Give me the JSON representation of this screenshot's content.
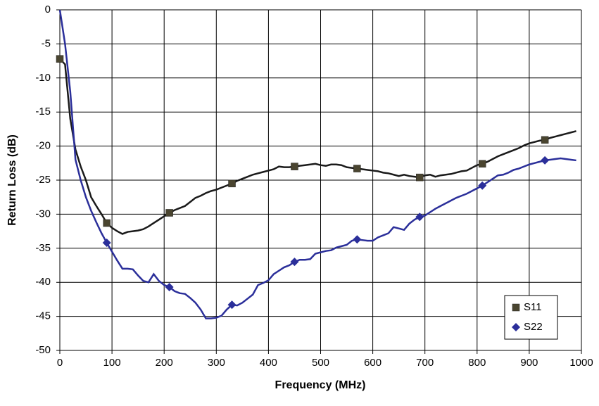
{
  "chart_data": {
    "type": "line",
    "x_label": "Frequency (MHz)",
    "y_label": "Return Loss (dB)",
    "x": [
      0,
      10,
      20,
      30,
      40,
      50,
      60,
      70,
      80,
      90,
      100,
      110,
      120,
      130,
      140,
      150,
      160,
      170,
      180,
      190,
      200,
      210,
      220,
      230,
      240,
      250,
      260,
      270,
      280,
      290,
      300,
      310,
      320,
      330,
      340,
      350,
      360,
      370,
      380,
      390,
      400,
      410,
      420,
      430,
      440,
      450,
      460,
      470,
      480,
      490,
      500,
      510,
      520,
      530,
      540,
      550,
      560,
      570,
      580,
      590,
      600,
      610,
      620,
      630,
      640,
      650,
      660,
      670,
      680,
      690,
      700,
      710,
      720,
      730,
      740,
      750,
      760,
      770,
      780,
      790,
      800,
      810,
      820,
      830,
      840,
      850,
      860,
      870,
      880,
      890,
      900,
      910,
      920,
      930,
      940,
      950,
      960,
      970,
      980,
      990
    ],
    "series": [
      {
        "name": "S11",
        "color": "#1a1a1a",
        "marker_color": "#4a4530",
        "marker": "square",
        "values": [
          -7.2,
          -8,
          -16,
          -20.5,
          -23,
          -25,
          -27.5,
          -28.8,
          -30,
          -31.3,
          -32,
          -32.5,
          -32.9,
          -32.6,
          -32.5,
          -32.4,
          -32.2,
          -31.8,
          -31.3,
          -30.8,
          -30.3,
          -29.8,
          -29.4,
          -29.1,
          -28.8,
          -28.2,
          -27.6,
          -27.3,
          -26.9,
          -26.6,
          -26.4,
          -26.1,
          -25.8,
          -25.5,
          -25.1,
          -24.8,
          -24.5,
          -24.2,
          -24,
          -23.8,
          -23.6,
          -23.4,
          -23,
          -23.1,
          -23.1,
          -23,
          -22.9,
          -22.8,
          -22.7,
          -22.6,
          -22.8,
          -22.9,
          -22.7,
          -22.7,
          -22.8,
          -23.1,
          -23.2,
          -23.3,
          -23.4,
          -23.5,
          -23.6,
          -23.7,
          -23.9,
          -24,
          -24.2,
          -24.4,
          -24.2,
          -24.4,
          -24.5,
          -24.6,
          -24.3,
          -24.2,
          -24.5,
          -24.3,
          -24.2,
          -24.1,
          -23.9,
          -23.7,
          -23.6,
          -23.2,
          -22.8,
          -22.6,
          -22.3,
          -21.9,
          -21.5,
          -21.2,
          -20.9,
          -20.6,
          -20.3,
          -19.9,
          -19.6,
          -19.4,
          -19.2,
          -19.1,
          -18.8,
          -18.6,
          -18.4,
          -18.2,
          -18,
          -17.8
        ]
      },
      {
        "name": "S22",
        "color": "#2b2f9a",
        "marker_color": "#2b2f9a",
        "marker": "diamond",
        "values": [
          0,
          -5,
          -12,
          -22,
          -25,
          -27.5,
          -29.5,
          -31.2,
          -32.8,
          -34.2,
          -35.5,
          -36.8,
          -38,
          -38,
          -38.1,
          -39,
          -39.8,
          -40,
          -38.8,
          -39.8,
          -40.4,
          -40.7,
          -41.3,
          -41.6,
          -41.7,
          -42.3,
          -43,
          -44,
          -45.3,
          -45.3,
          -45.2,
          -44.9,
          -44,
          -43.3,
          -43.4,
          -43,
          -42.4,
          -41.8,
          -40.4,
          -40.1,
          -39.7,
          -38.8,
          -38.3,
          -37.8,
          -37.5,
          -37,
          -36.7,
          -36.7,
          -36.6,
          -35.8,
          -35.6,
          -35.4,
          -35.3,
          -34.9,
          -34.7,
          -34.5,
          -33.9,
          -33.7,
          -33.8,
          -33.9,
          -33.9,
          -33.4,
          -33.1,
          -32.8,
          -31.9,
          -32.1,
          -32.3,
          -31.4,
          -30.8,
          -30.4,
          -30.2,
          -29.7,
          -29.2,
          -28.8,
          -28.4,
          -28,
          -27.6,
          -27.3,
          -27,
          -26.6,
          -26.2,
          -25.8,
          -25.3,
          -24.8,
          -24.3,
          -24.2,
          -23.9,
          -23.5,
          -23.3,
          -23,
          -22.7,
          -22.5,
          -22.3,
          -22.1,
          -22,
          -21.9,
          -21.8,
          -21.9,
          -22,
          -22.1
        ]
      }
    ],
    "xlim": [
      0,
      1000
    ],
    "xticks": [
      0,
      100,
      200,
      300,
      400,
      500,
      600,
      700,
      800,
      900,
      1000
    ],
    "ylim": [
      -50,
      0
    ],
    "yticks": [
      -50,
      -45,
      -40,
      -35,
      -30,
      -25,
      -20,
      -15,
      -10,
      -5,
      0
    ],
    "grid": true,
    "legend": "lower right"
  }
}
